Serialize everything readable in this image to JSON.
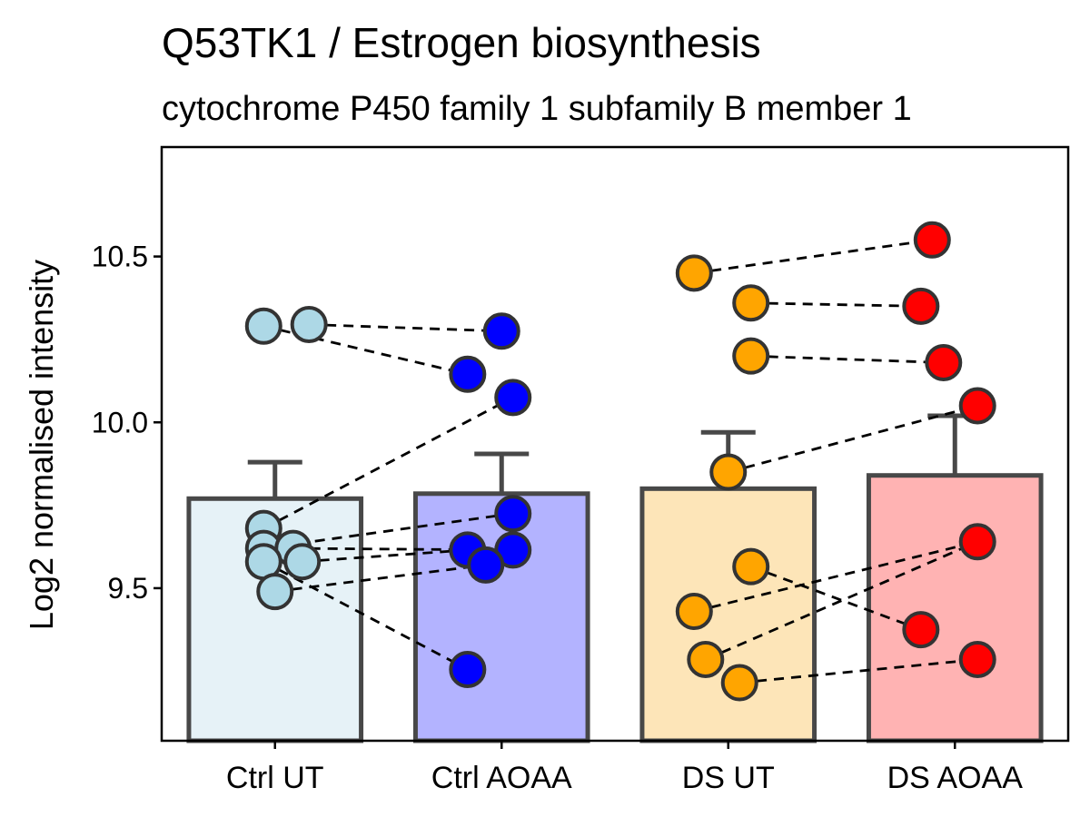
{
  "chart_data": {
    "type": "bar",
    "title": "Q53TK1 / Estrogen biosynthesis",
    "subtitle": "cytochrome P450 family 1 subfamily B member 1",
    "xlabel": "",
    "ylabel": "Log2 normalised intensity",
    "ylim": [
      9.04,
      10.83
    ],
    "yticks": [
      9.5,
      10.0,
      10.5
    ],
    "ytick_labels": [
      "9.5",
      "10.0",
      "10.5"
    ],
    "grid": false,
    "legend": "none",
    "categories": [
      "Ctrl UT",
      "Ctrl AOAA",
      "DS UT",
      "DS AOAA"
    ],
    "values": [
      9.77,
      9.785,
      9.8,
      9.84
    ],
    "error_upper": [
      9.88,
      9.905,
      9.97,
      10.02
    ],
    "bar_fill_colors": [
      "#e6f2f7",
      "#b3b3ff",
      "#fde5b8",
      "#ffb3b3"
    ],
    "point_colors": [
      "#add8e6",
      "#0000ff",
      "#ffa500",
      "#ff0000"
    ],
    "points": [
      [
        {
          "x": -0.05,
          "y": 10.29
        },
        {
          "x": 0.15,
          "y": 10.295
        },
        {
          "x": -0.05,
          "y": 9.68
        },
        {
          "x": -0.05,
          "y": 9.62
        },
        {
          "x": 0.08,
          "y": 9.62
        },
        {
          "x": -0.05,
          "y": 9.58
        },
        {
          "x": 0.12,
          "y": 9.58
        },
        {
          "x": 0.0,
          "y": 9.49
        }
      ],
      [
        {
          "x": 0.0,
          "y": 10.275
        },
        {
          "x": -0.15,
          "y": 10.145
        },
        {
          "x": 0.05,
          "y": 10.075
        },
        {
          "x": 0.05,
          "y": 9.725
        },
        {
          "x": -0.15,
          "y": 9.615
        },
        {
          "x": 0.05,
          "y": 9.615
        },
        {
          "x": -0.07,
          "y": 9.57
        },
        {
          "x": -0.15,
          "y": 9.255
        }
      ],
      [
        {
          "x": -0.15,
          "y": 10.45
        },
        {
          "x": 0.1,
          "y": 10.36
        },
        {
          "x": 0.1,
          "y": 10.2
        },
        {
          "x": 0.0,
          "y": 9.85
        },
        {
          "x": 0.1,
          "y": 9.565
        },
        {
          "x": -0.15,
          "y": 9.43
        },
        {
          "x": -0.1,
          "y": 9.285
        },
        {
          "x": 0.05,
          "y": 9.215
        }
      ],
      [
        {
          "x": -0.1,
          "y": 10.55
        },
        {
          "x": -0.15,
          "y": 10.35
        },
        {
          "x": -0.05,
          "y": 10.18
        },
        {
          "x": 0.1,
          "y": 10.05
        },
        {
          "x": 0.1,
          "y": 9.64
        },
        {
          "x": -0.15,
          "y": 9.375
        },
        {
          "x": 0.1,
          "y": 9.285
        }
      ]
    ],
    "pairs": [
      {
        "from": [
          0,
          1
        ],
        "to": [
          1,
          0
        ]
      },
      {
        "from": [
          0,
          0
        ],
        "to": [
          1,
          1
        ]
      },
      {
        "from": [
          0,
          2
        ],
        "to": [
          1,
          2
        ]
      },
      {
        "from": [
          0,
          3
        ],
        "to": [
          1,
          3
        ]
      },
      {
        "from": [
          0,
          4
        ],
        "to": [
          1,
          5
        ]
      },
      {
        "from": [
          0,
          6
        ],
        "to": [
          1,
          4
        ]
      },
      {
        "from": [
          0,
          7
        ],
        "to": [
          1,
          6
        ]
      },
      {
        "from": [
          0,
          5
        ],
        "to": [
          1,
          7
        ]
      },
      {
        "from": [
          2,
          0
        ],
        "to": [
          3,
          0
        ]
      },
      {
        "from": [
          2,
          1
        ],
        "to": [
          3,
          1
        ]
      },
      {
        "from": [
          2,
          2
        ],
        "to": [
          3,
          2
        ]
      },
      {
        "from": [
          2,
          3
        ],
        "to": [
          3,
          3
        ]
      },
      {
        "from": [
          2,
          5
        ],
        "to": [
          3,
          4
        ]
      },
      {
        "from": [
          2,
          4
        ],
        "to": [
          3,
          5
        ]
      },
      {
        "from": [
          2,
          6
        ],
        "to": [
          3,
          4
        ]
      },
      {
        "from": [
          2,
          7
        ],
        "to": [
          3,
          6
        ]
      }
    ]
  }
}
